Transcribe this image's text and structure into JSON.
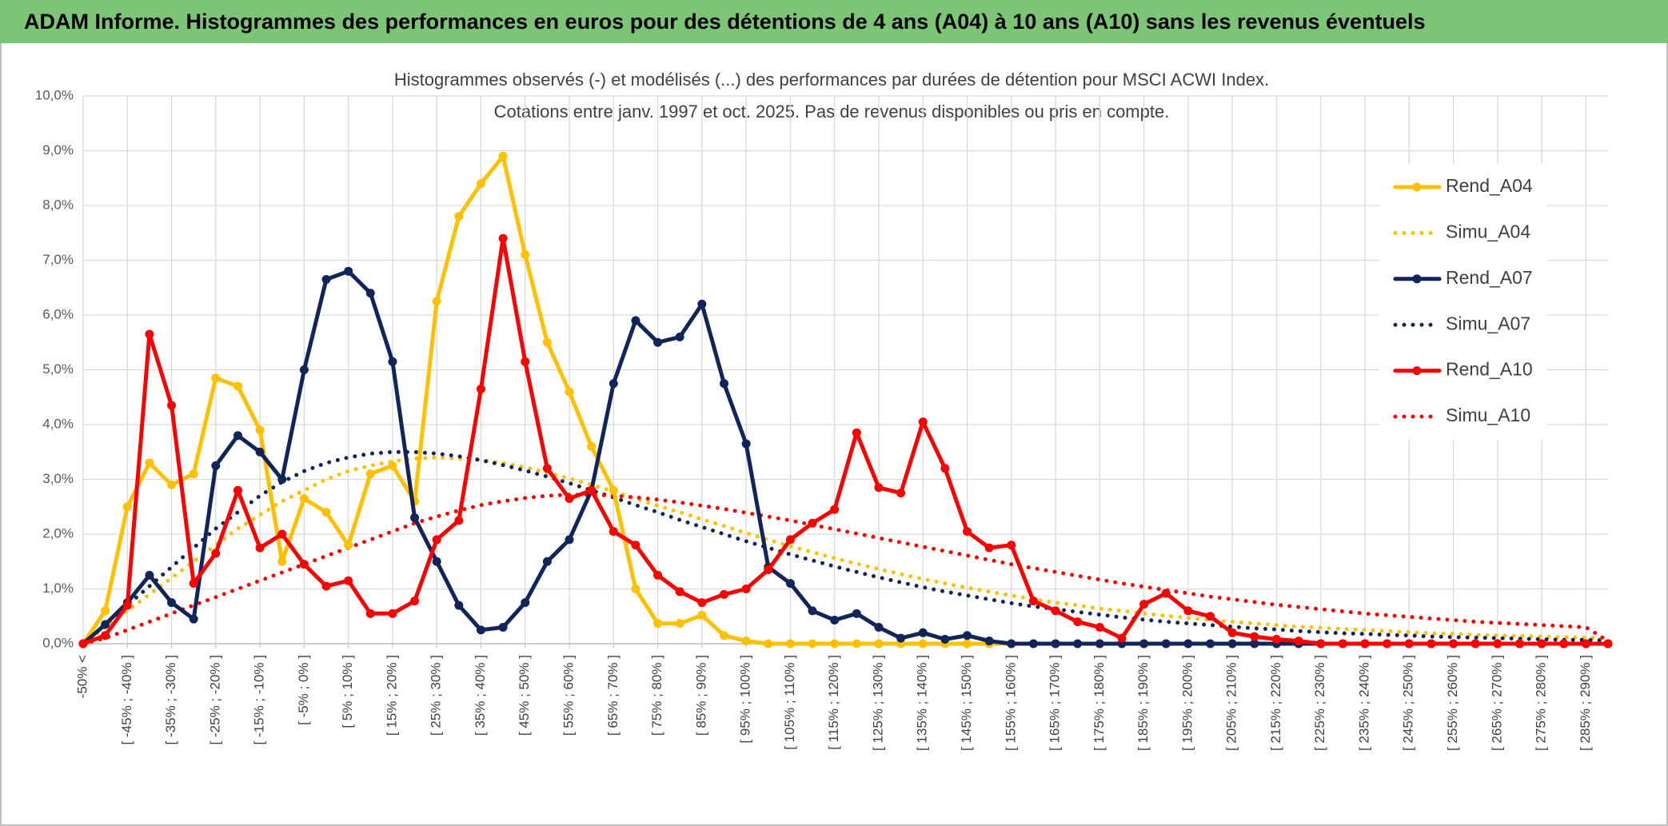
{
  "header": {
    "title": "ADAM Informe. Histogrammes des performances en euros pour des détentions de 4 ans (A04) à 10 ans (A10) sans les revenus éventuels"
  },
  "chart_data": {
    "type": "line",
    "title": "Histogrammes observés (-) et modélisés (...) des performances par durées de détention pour MSCI ACWI Index.",
    "subtitle": "Cotations entre janv. 1997 et oct. 2025. Pas de revenus disponibles ou pris en compte.",
    "categories": [
      "-50% <",
      null,
      "[ -45% ; -40% ]",
      null,
      "[ -35% ; -30% ]",
      null,
      "[ -25% ; -20% ]",
      null,
      "[ -15% ; -10% ]",
      null,
      "[ -5% ; 0% ]",
      null,
      "[ 5% ; 10% ]",
      null,
      "[ 15% ; 20% ]",
      null,
      "[ 25% ; 30% ]",
      null,
      "[ 35% ; 40% ]",
      null,
      "[ 45% ; 50% ]",
      null,
      "[ 55% ; 60% ]",
      null,
      "[ 65% ; 70% ]",
      null,
      "[ 75% ; 80% ]",
      null,
      "[ 85% ; 90% ]",
      null,
      "[ 95% ; 100% ]",
      null,
      "[ 105% ; 110% ]",
      null,
      "[ 115% ; 120% ]",
      null,
      "[ 125% ; 130% ]",
      null,
      "[ 135% ; 140% ]",
      null,
      "[ 145% ; 150% ]",
      null,
      "[ 155% ; 160% ]",
      null,
      "[ 165% ; 170% ]",
      null,
      "[ 175% ; 180% ]",
      null,
      "[ 185% ; 190% ]",
      null,
      "[ 195% ; 200% ]",
      null,
      "[ 205% ; 210% ]",
      null,
      "[ 215% ; 220% ]",
      null,
      "[ 225% ; 230% ]",
      null,
      "[ 235% ; 240% ]",
      null,
      "[ 245% ; 250% ]",
      null,
      "[ 255% ; 260% ]",
      null,
      "[ 265% ; 270% ]",
      null,
      "[ 275% ; 280% ]",
      null,
      "[ 285% ; 290% ]",
      null
    ],
    "series": [
      {
        "name": "Rend_A04",
        "color": "#FFC000",
        "style": "solid",
        "markers": true,
        "values": [
          0,
          0.6,
          2.5,
          3.3,
          2.9,
          3.1,
          4.85,
          4.7,
          3.9,
          1.5,
          2.65,
          2.4,
          1.8,
          3.1,
          3.25,
          2.6,
          6.25,
          7.8,
          8.4,
          8.9,
          7.1,
          5.5,
          4.6,
          3.6,
          2.8,
          1.0,
          0.37,
          0.37,
          0.52,
          0.15,
          0.05,
          0,
          0,
          0,
          0,
          0,
          0,
          0,
          0,
          0,
          0,
          0,
          0,
          0,
          0,
          0,
          0,
          0,
          0,
          0,
          0,
          0,
          0,
          0,
          0,
          0,
          0,
          0,
          0,
          0,
          0,
          0,
          0,
          0,
          0,
          0,
          0,
          0,
          0,
          0
        ]
      },
      {
        "name": "Simu_A04",
        "color": "#FFC000",
        "style": "dotted",
        "markers": false,
        "values": [
          0,
          0.3,
          0.6,
          0.9,
          1.2,
          1.5,
          1.8,
          2.1,
          2.35,
          2.6,
          2.8,
          3.0,
          3.15,
          3.25,
          3.33,
          3.38,
          3.4,
          3.38,
          3.35,
          3.3,
          3.22,
          3.12,
          3.02,
          2.9,
          2.78,
          2.65,
          2.52,
          2.4,
          2.27,
          2.15,
          2.02,
          1.9,
          1.78,
          1.67,
          1.56,
          1.46,
          1.36,
          1.27,
          1.18,
          1.1,
          1.02,
          0.95,
          0.88,
          0.81,
          0.75,
          0.7,
          0.64,
          0.6,
          0.55,
          0.51,
          0.47,
          0.43,
          0.4,
          0.37,
          0.34,
          0.31,
          0.29,
          0.27,
          0.25,
          0.23,
          0.21,
          0.19,
          0.18,
          0.16,
          0.15,
          0.14,
          0.13,
          0.12,
          0.11,
          0.1
        ]
      },
      {
        "name": "Rend_A07",
        "color": "#12255A",
        "style": "solid",
        "markers": true,
        "values": [
          0,
          0.35,
          0.75,
          1.25,
          0.75,
          0.45,
          3.25,
          3.8,
          3.5,
          3.0,
          5.0,
          6.65,
          6.8,
          6.4,
          5.15,
          2.3,
          1.5,
          0.7,
          0.25,
          0.3,
          0.75,
          1.5,
          1.9,
          2.8,
          4.75,
          5.9,
          5.5,
          5.6,
          6.2,
          4.75,
          3.65,
          1.4,
          1.1,
          0.6,
          0.43,
          0.55,
          0.3,
          0.1,
          0.2,
          0.08,
          0.15,
          0.05,
          0,
          0,
          0,
          0,
          0,
          0,
          0,
          0,
          0,
          0,
          0,
          0,
          0,
          0,
          0,
          0,
          0,
          0,
          0,
          0,
          0,
          0,
          0,
          0,
          0,
          0,
          0,
          0
        ]
      },
      {
        "name": "Simu_A07",
        "color": "#12255A",
        "style": "dotted",
        "markers": false,
        "values": [
          0,
          0.35,
          0.7,
          1.05,
          1.4,
          1.75,
          2.1,
          2.4,
          2.7,
          2.95,
          3.15,
          3.3,
          3.4,
          3.47,
          3.5,
          3.5,
          3.47,
          3.42,
          3.35,
          3.26,
          3.16,
          3.05,
          2.93,
          2.8,
          2.67,
          2.53,
          2.4,
          2.26,
          2.13,
          2.0,
          1.87,
          1.75,
          1.63,
          1.52,
          1.41,
          1.31,
          1.21,
          1.12,
          1.03,
          0.95,
          0.88,
          0.81,
          0.74,
          0.68,
          0.63,
          0.58,
          0.53,
          0.48,
          0.44,
          0.4,
          0.37,
          0.34,
          0.31,
          0.28,
          0.26,
          0.23,
          0.21,
          0.19,
          0.18,
          0.16,
          0.15,
          0.13,
          0.12,
          0.11,
          0.1,
          0.09,
          0.08,
          0.07,
          0.07,
          0.06
        ]
      },
      {
        "name": "Rend_A10",
        "color": "#FF0000",
        "style": "solid",
        "markers": true,
        "values": [
          0,
          0.15,
          0.7,
          5.65,
          4.35,
          1.1,
          1.65,
          2.8,
          1.75,
          2.0,
          1.45,
          1.05,
          1.15,
          0.55,
          0.55,
          0.78,
          1.9,
          2.25,
          4.65,
          7.4,
          5.15,
          3.2,
          2.65,
          2.8,
          2.05,
          1.8,
          1.25,
          0.95,
          0.75,
          0.9,
          1.0,
          1.35,
          1.9,
          2.2,
          2.45,
          3.85,
          2.85,
          2.75,
          4.05,
          3.2,
          2.05,
          1.75,
          1.8,
          0.78,
          0.6,
          0.4,
          0.3,
          0.1,
          0.72,
          0.92,
          0.6,
          0.5,
          0.2,
          0.13,
          0.08,
          0.05,
          0,
          0,
          0,
          0,
          0,
          0,
          0,
          0,
          0,
          0,
          0,
          0,
          0,
          0
        ]
      },
      {
        "name": "Simu_A10",
        "color": "#FF0000",
        "style": "dotted",
        "markers": false,
        "values": [
          0,
          0.1,
          0.25,
          0.4,
          0.55,
          0.7,
          0.85,
          1.0,
          1.15,
          1.3,
          1.45,
          1.6,
          1.75,
          1.9,
          2.05,
          2.2,
          2.32,
          2.43,
          2.53,
          2.6,
          2.66,
          2.7,
          2.72,
          2.72,
          2.7,
          2.67,
          2.63,
          2.58,
          2.52,
          2.46,
          2.39,
          2.32,
          2.25,
          2.17,
          2.09,
          2.01,
          1.93,
          1.85,
          1.77,
          1.69,
          1.61,
          1.53,
          1.45,
          1.38,
          1.31,
          1.24,
          1.17,
          1.1,
          1.04,
          0.98,
          0.92,
          0.86,
          0.81,
          0.76,
          0.71,
          0.67,
          0.63,
          0.59,
          0.55,
          0.52,
          0.49,
          0.46,
          0.43,
          0.4,
          0.38,
          0.36,
          0.34,
          0.32,
          0.3,
          0.05
        ]
      }
    ],
    "ylim": [
      0,
      10
    ],
    "yticks": [
      {
        "value": 0,
        "label": "0,0%"
      },
      {
        "value": 1,
        "label": "1,0%"
      },
      {
        "value": 2,
        "label": "2,0%"
      },
      {
        "value": 3,
        "label": "3,0%"
      },
      {
        "value": 4,
        "label": "4,0%"
      },
      {
        "value": 5,
        "label": "5,0%"
      },
      {
        "value": 6,
        "label": "6,0%"
      },
      {
        "value": 7,
        "label": "7,0%"
      },
      {
        "value": 8,
        "label": "8,0%"
      },
      {
        "value": 9,
        "label": "9,0%"
      },
      {
        "value": 10,
        "label": "10,0%"
      }
    ],
    "grid": true,
    "legend": "right"
  }
}
